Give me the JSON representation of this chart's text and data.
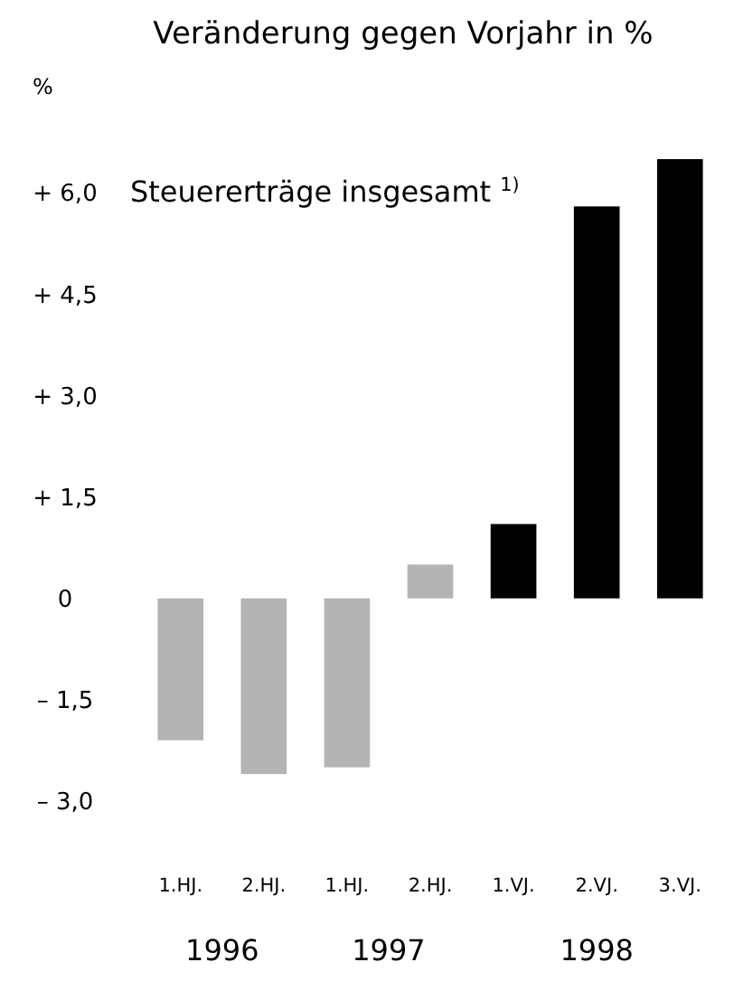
{
  "chart_data": {
    "type": "bar",
    "title": "Veränderung gegen Vorjahr in %",
    "subtitle": "Steuererträge insgesamt $^{1)}$",
    "ylabel": "%",
    "categories": [
      "1.HJ.",
      "2.HJ.",
      "1.HJ.",
      "2.HJ.",
      "1.VJ.",
      "2.VJ.",
      "3.VJ."
    ],
    "values": [
      -2.1,
      -2.6,
      -2.5,
      0.5,
      1.1,
      5.8,
      6.5
    ],
    "colors": [
      "#b4b4b4",
      "#b4b4b4",
      "#b4b4b4",
      "#b4b4b4",
      "#000000",
      "#000000",
      "#000000"
    ],
    "ylim": [
      -3,
      6.5
    ],
    "yticks": [
      {
        "value": 6,
        "label": "+ 6,0"
      },
      {
        "value": 4.5,
        "label": "+ 4,5"
      },
      {
        "value": 3,
        "label": "+ 3,0"
      },
      {
        "value": 1.5,
        "label": "+ 1,5"
      },
      {
        "value": 0,
        "label": "0"
      },
      {
        "value": -1.5,
        "label": "– 1,5"
      },
      {
        "value": -3,
        "label": "– 3,0"
      }
    ],
    "annotations": [
      "1996",
      "1997",
      "1998"
    ]
  }
}
